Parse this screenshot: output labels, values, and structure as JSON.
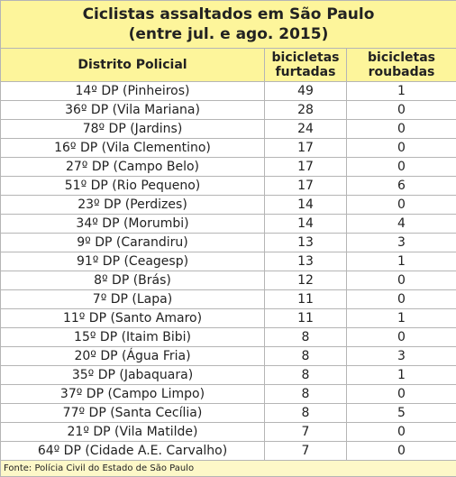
{
  "title": {
    "line1": "Ciclistas assaltados em São Paulo",
    "line2": "(entre jul. e ago. 2015)"
  },
  "table": {
    "header": [
      "Distrito Policial",
      "bicicletas furtadas",
      "bicicletas roubadas"
    ],
    "rows": [
      [
        "14º DP (Pinheiros)",
        49,
        1
      ],
      [
        "36º DP (Vila Mariana)",
        28,
        0
      ],
      [
        "78º DP (Jardins)",
        24,
        0
      ],
      [
        "16º DP (Vila Clementino)",
        17,
        0
      ],
      [
        "27º DP (Campo Belo)",
        17,
        0
      ],
      [
        "51º DP (Rio Pequeno)",
        17,
        6
      ],
      [
        "23º DP (Perdizes)",
        14,
        0
      ],
      [
        "34º DP (Morumbi)",
        14,
        4
      ],
      [
        "9º DP (Carandiru)",
        13,
        3
      ],
      [
        "91º DP (Ceagesp)",
        13,
        1
      ],
      [
        "8º DP (Brás)",
        12,
        0
      ],
      [
        "7º DP (Lapa)",
        11,
        0
      ],
      [
        "11º DP (Santo Amaro)",
        11,
        1
      ],
      [
        "15º DP (Itaim Bibi)",
        8,
        0
      ],
      [
        "20º DP (Água Fria)",
        8,
        3
      ],
      [
        "35º DP (Jabaquara)",
        8,
        1
      ],
      [
        "37º DP (Campo Limpo)",
        8,
        0
      ],
      [
        "77º DP (Santa Cecília)",
        8,
        5
      ],
      [
        "21º DP (Vila Matilde)",
        7,
        0
      ],
      [
        "64º DP (Cidade A.E. Carvalho)",
        7,
        0
      ]
    ]
  },
  "footer": "Fonte: Polícia Civil do Estado de São Paulo"
}
